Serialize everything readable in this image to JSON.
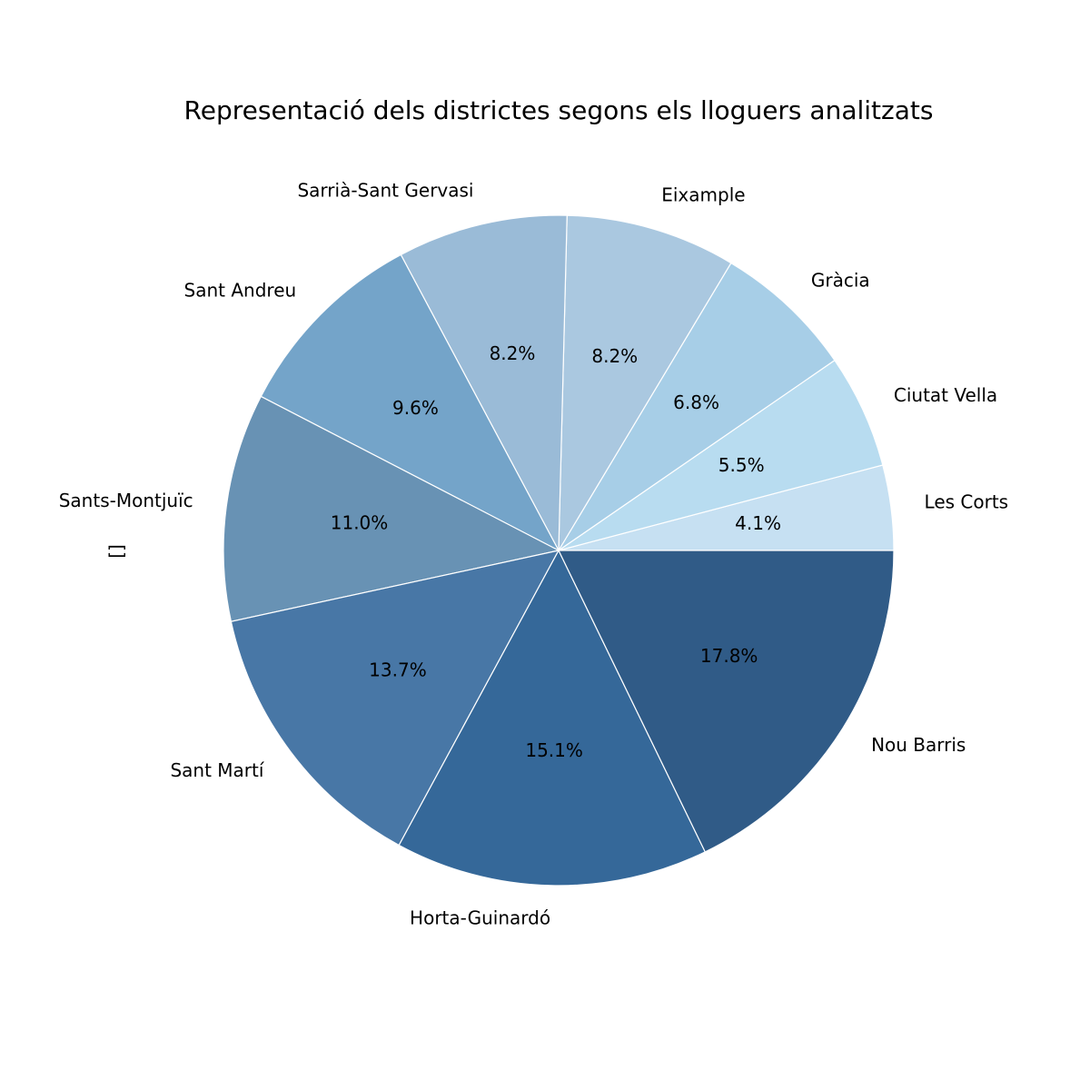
{
  "chart_data": {
    "type": "pie",
    "title": "Representació dels districtes segons els lloguers analitzats",
    "ylabel": "[]",
    "start_angle_deg": 0,
    "direction": "counterclockwise",
    "slices": [
      {
        "label": "Les Corts",
        "value": 4.1,
        "pct_label": "4.1%",
        "color": "#c6e0f2"
      },
      {
        "label": "Ciutat Vella",
        "value": 5.5,
        "pct_label": "5.5%",
        "color": "#b8dcf0"
      },
      {
        "label": "Gràcia",
        "value": 6.8,
        "pct_label": "6.8%",
        "color": "#a7cee7"
      },
      {
        "label": "Eixample",
        "value": 8.2,
        "pct_label": "8.2%",
        "color": "#aac8e0"
      },
      {
        "label": "Sarrià-Sant Gervasi",
        "value": 8.2,
        "pct_label": "8.2%",
        "color": "#9abbd7"
      },
      {
        "label": "Sant Andreu",
        "value": 9.6,
        "pct_label": "9.6%",
        "color": "#74a4c9"
      },
      {
        "label": "Sants-Montjuïc",
        "value": 11.0,
        "pct_label": "11.0%",
        "color": "#6892b4"
      },
      {
        "label": "Sant Martí",
        "value": 13.7,
        "pct_label": "13.7%",
        "color": "#4877a6"
      },
      {
        "label": "Horta-Guinardó",
        "value": 15.1,
        "pct_label": "15.1%",
        "color": "#356899"
      },
      {
        "label": "Nou Barris",
        "value": 17.8,
        "pct_label": "17.8%",
        "color": "#305b87"
      }
    ]
  }
}
